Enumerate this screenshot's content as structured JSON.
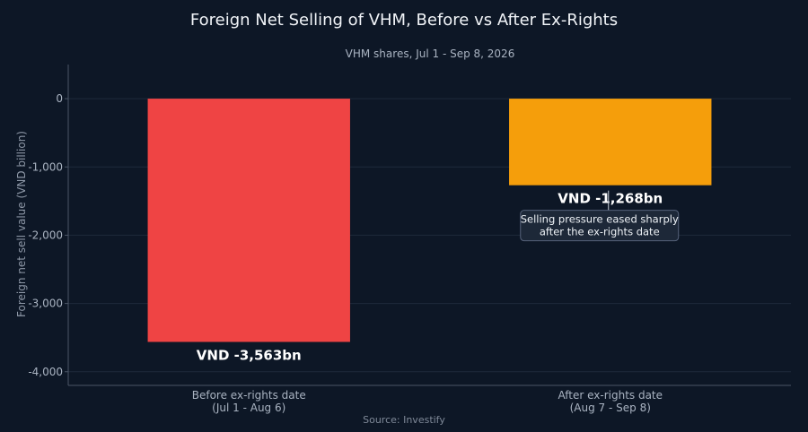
{
  "chart_data": {
    "type": "bar",
    "title": "Foreign Net Selling of VHM, Before vs After Ex-Rights",
    "subtitle": "VHM shares, Jul 1 - Sep 8, 2026",
    "ylabel": "Foreign net sell value (VND billion)",
    "source": "Source: Investify",
    "categories": [
      [
        "Before ex-rights date",
        "(Jul 1 - Aug 6)"
      ],
      [
        "After ex-rights date",
        "(Aug 7 - Sep 8)"
      ]
    ],
    "values": [
      -3563,
      -1268
    ],
    "data_labels": [
      "VND -3,563bn",
      "VND -1,268bn"
    ],
    "colors": [
      "#ef4444",
      "#f59e0b"
    ],
    "ylim": [
      -4200,
      500
    ],
    "yticks": [
      0,
      -1000,
      -2000,
      -3000,
      -4000
    ],
    "ytick_labels": [
      "0",
      "-1,000",
      "-2,000",
      "-3,000",
      "-4,000"
    ],
    "grid": true,
    "annotation": {
      "lines": [
        "Selling pressure eased sharply",
        "after the ex-rights date"
      ],
      "category_index": 1,
      "value": -1268
    }
  }
}
